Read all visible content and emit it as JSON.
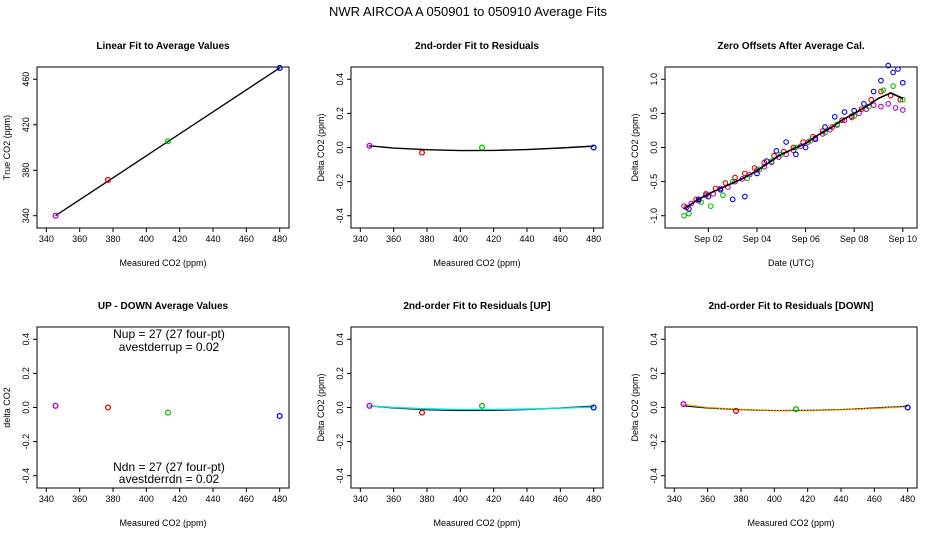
{
  "suptitle": "NWR    AIRCOA A    050901 to 050910    Average Fits",
  "colors": {
    "purple": "#b000d0",
    "red": "#e00000",
    "green": "#00c000",
    "blue": "#0000e0",
    "cyan": "#00e0e0",
    "orange": "#ffa000",
    "black": "#000000"
  },
  "chart_data": [
    {
      "type": "scatter",
      "title": "Linear Fit to Average Values",
      "xlabel": "Measured CO2 (ppm)",
      "ylabel": "True CO2 (ppm)",
      "xlim": [
        340,
        480
      ],
      "ylim": [
        340,
        460
      ],
      "xticks": [
        340,
        360,
        380,
        400,
        420,
        440,
        460,
        480
      ],
      "yticks": [
        340,
        380,
        420,
        460
      ],
      "points": [
        {
          "x": 345.5,
          "y": 340.0,
          "color": "purple"
        },
        {
          "x": 377.0,
          "y": 371.5,
          "color": "red"
        },
        {
          "x": 413.0,
          "y": 405.5,
          "color": "green"
        },
        {
          "x": 480.0,
          "y": 470.0,
          "color": "blue"
        }
      ],
      "fit_line": {
        "x": [
          345.5,
          480.0
        ],
        "y": [
          340.0,
          470.0
        ],
        "color": "black"
      }
    },
    {
      "type": "scatter",
      "title": "2nd-order Fit to Residuals",
      "xlabel": "Measured CO2 (ppm)",
      "ylabel": "Delta CO2 (ppm)",
      "xlim": [
        340,
        480
      ],
      "ylim": [
        -0.4,
        0.4
      ],
      "xticks": [
        340,
        360,
        380,
        400,
        420,
        440,
        460,
        480
      ],
      "yticks": [
        -0.4,
        -0.2,
        0.0,
        0.2,
        0.4
      ],
      "points": [
        {
          "x": 345.5,
          "y": 0.01,
          "color": "purple"
        },
        {
          "x": 377.0,
          "y": -0.03,
          "color": "red"
        },
        {
          "x": 413.0,
          "y": 0.0,
          "color": "green"
        },
        {
          "x": 480.0,
          "y": 0.0,
          "color": "blue"
        }
      ],
      "fit_curve": {
        "x": [
          345,
          360,
          380,
          400,
          420,
          440,
          460,
          480
        ],
        "y": [
          0.01,
          -0.003,
          -0.013,
          -0.018,
          -0.017,
          -0.012,
          -0.003,
          0.008
        ],
        "color": "black"
      }
    },
    {
      "type": "scatter",
      "title": "Zero Offsets After Average Cal.",
      "xlabel": "Date (UTC)",
      "ylabel": "Delta CO2 (ppm)",
      "xlim": [
        0.6,
        10.2
      ],
      "ylim": [
        -1.0,
        1.0
      ],
      "xticks": [
        2,
        4,
        6,
        8,
        10
      ],
      "xticklabels": [
        "Sep 02",
        "Sep 04",
        "Sep 06",
        "Sep 08",
        "Sep 10"
      ],
      "yticks": [
        -1.0,
        -0.5,
        0.0,
        0.5,
        1.0
      ],
      "series": [
        {
          "color": "purple",
          "x": [
            1.0,
            1.3,
            1.6,
            1.9,
            2.2,
            2.5,
            2.8,
            3.1,
            3.4,
            3.7,
            4.0,
            4.3,
            4.6,
            4.9,
            5.2,
            5.5,
            5.8,
            6.1,
            6.4,
            6.7,
            7.0,
            7.3,
            7.6,
            7.9,
            8.2,
            8.5,
            8.8,
            9.1,
            9.4,
            9.7,
            10.0
          ],
          "y": [
            -0.86,
            -0.82,
            -0.78,
            -0.7,
            -0.68,
            -0.6,
            -0.58,
            -0.5,
            -0.46,
            -0.4,
            -0.33,
            -0.28,
            -0.22,
            -0.14,
            -0.1,
            -0.04,
            0.02,
            0.08,
            0.14,
            0.2,
            0.26,
            0.33,
            0.4,
            0.44,
            0.5,
            0.56,
            0.62,
            0.6,
            0.64,
            0.58,
            0.55
          ]
        },
        {
          "color": "red",
          "x": [
            1.1,
            1.5,
            1.9,
            2.3,
            2.7,
            3.1,
            3.5,
            3.9,
            4.3,
            4.7,
            5.1,
            5.5,
            5.9,
            6.3,
            6.7,
            7.1,
            7.5,
            7.9,
            8.3,
            8.7,
            9.1,
            9.5,
            9.9
          ],
          "y": [
            -0.88,
            -0.76,
            -0.68,
            -0.6,
            -0.52,
            -0.44,
            -0.38,
            -0.3,
            -0.22,
            -0.12,
            -0.06,
            0.0,
            0.08,
            0.16,
            0.24,
            0.3,
            0.4,
            0.46,
            0.56,
            0.7,
            0.82,
            0.76,
            0.7
          ]
        },
        {
          "color": "green",
          "x": [
            1.0,
            1.2,
            1.7,
            2.1,
            2.6,
            3.0,
            3.6,
            4.1,
            4.6,
            5.0,
            5.6,
            6.2,
            6.8,
            7.3,
            8.0,
            8.6,
            9.2,
            9.6,
            10.0
          ],
          "y": [
            -1.0,
            -0.97,
            -0.8,
            -0.86,
            -0.7,
            -0.5,
            -0.45,
            -0.32,
            -0.2,
            -0.1,
            0.0,
            0.1,
            0.22,
            0.34,
            0.46,
            0.6,
            0.84,
            0.9,
            0.7
          ]
        },
        {
          "color": "blue",
          "x": [
            1.2,
            1.6,
            2.0,
            2.5,
            3.0,
            3.5,
            4.0,
            4.4,
            4.8,
            5.2,
            5.6,
            6.0,
            6.4,
            6.8,
            7.2,
            7.6,
            8.0,
            8.4,
            8.8,
            9.1,
            9.4,
            9.6,
            9.8,
            10.0
          ],
          "y": [
            -0.9,
            -0.76,
            -0.72,
            -0.62,
            -0.76,
            -0.72,
            -0.38,
            -0.2,
            -0.05,
            0.08,
            -0.1,
            0.0,
            0.12,
            0.3,
            0.45,
            0.52,
            0.54,
            0.64,
            0.82,
            0.98,
            1.2,
            1.1,
            1.15,
            0.95
          ]
        }
      ],
      "mean_line": {
        "color": "black",
        "x": [
          1.0,
          1.5,
          2.0,
          2.5,
          3.0,
          3.5,
          4.0,
          4.5,
          5.0,
          5.5,
          6.0,
          6.5,
          7.0,
          7.5,
          8.0,
          8.5,
          9.0,
          9.5,
          10.0
        ],
        "y": [
          -0.9,
          -0.78,
          -0.68,
          -0.6,
          -0.52,
          -0.44,
          -0.34,
          -0.22,
          -0.1,
          -0.02,
          0.06,
          0.18,
          0.28,
          0.4,
          0.5,
          0.6,
          0.72,
          0.8,
          0.72
        ]
      }
    },
    {
      "type": "scatter",
      "title": "UP - DOWN Average Values",
      "xlabel": "Measured CO2 (ppm)",
      "ylabel": "delta CO2",
      "xlim": [
        340,
        480
      ],
      "ylim": [
        -0.4,
        0.4
      ],
      "xticks": [
        340,
        360,
        380,
        400,
        420,
        440,
        460,
        480
      ],
      "yticks": [
        -0.4,
        -0.2,
        0.0,
        0.2,
        0.4
      ],
      "points": [
        {
          "x": 345.5,
          "y": 0.01,
          "color": "purple"
        },
        {
          "x": 377.0,
          "y": 0.0,
          "color": "red"
        },
        {
          "x": 413.0,
          "y": -0.03,
          "color": "green"
        },
        {
          "x": 480.0,
          "y": -0.05,
          "color": "blue"
        }
      ],
      "annotations": {
        "nup": "Nup = 27 (27 four-pt)",
        "avestderrup": "avestderrup =  0.02",
        "ndn": "Ndn = 27 (27 four-pt)",
        "avestderrdn": "avestderrdn =  0.02"
      }
    },
    {
      "type": "scatter",
      "title": "2nd-order Fit to Residuals [UP]",
      "xlabel": "Measured CO2 (ppm)",
      "ylabel": "Delta CO2 (ppm)",
      "xlim": [
        340,
        480
      ],
      "ylim": [
        -0.4,
        0.4
      ],
      "xticks": [
        340,
        360,
        380,
        400,
        420,
        440,
        460,
        480
      ],
      "yticks": [
        -0.4,
        -0.2,
        0.0,
        0.2,
        0.4
      ],
      "points": [
        {
          "x": 345.5,
          "y": 0.01,
          "color": "purple"
        },
        {
          "x": 377.0,
          "y": -0.03,
          "color": "red"
        },
        {
          "x": 413.0,
          "y": 0.01,
          "color": "green"
        },
        {
          "x": 480.0,
          "y": 0.0,
          "color": "blue"
        }
      ],
      "fit_curve": {
        "x": [
          345,
          360,
          380,
          400,
          420,
          440,
          460,
          480
        ],
        "y": [
          0.01,
          0.0,
          -0.008,
          -0.012,
          -0.012,
          -0.009,
          -0.004,
          0.003
        ],
        "color": "cyan"
      },
      "ref_curve": {
        "x": [
          345,
          360,
          380,
          400,
          420,
          440,
          460,
          480
        ],
        "y": [
          0.01,
          -0.003,
          -0.013,
          -0.018,
          -0.017,
          -0.012,
          -0.003,
          0.008
        ],
        "color": "black"
      }
    },
    {
      "type": "scatter",
      "title": "2nd-order Fit to Residuals [DOWN]",
      "xlabel": "Measured CO2 (ppm)",
      "ylabel": "Delta CO2 (ppm)",
      "xlim": [
        340,
        480
      ],
      "ylim": [
        -0.4,
        0.4
      ],
      "xticks": [
        340,
        360,
        380,
        400,
        420,
        440,
        460,
        480
      ],
      "yticks": [
        -0.4,
        -0.2,
        0.0,
        0.2,
        0.4
      ],
      "points": [
        {
          "x": 345.5,
          "y": 0.02,
          "color": "purple"
        },
        {
          "x": 377.0,
          "y": -0.02,
          "color": "red"
        },
        {
          "x": 413.0,
          "y": -0.01,
          "color": "green"
        },
        {
          "x": 480.0,
          "y": 0.0,
          "color": "blue"
        }
      ],
      "fit_curve": {
        "x": [
          345,
          360,
          380,
          400,
          420,
          440,
          460,
          480
        ],
        "y": [
          0.02,
          0.0,
          -0.012,
          -0.018,
          -0.018,
          -0.013,
          -0.006,
          0.005
        ],
        "color": "orange"
      },
      "ref_curve": {
        "x": [
          345,
          360,
          380,
          400,
          420,
          440,
          460,
          480
        ],
        "y": [
          0.01,
          -0.003,
          -0.013,
          -0.018,
          -0.017,
          -0.012,
          -0.003,
          0.008
        ],
        "color": "black"
      }
    }
  ]
}
